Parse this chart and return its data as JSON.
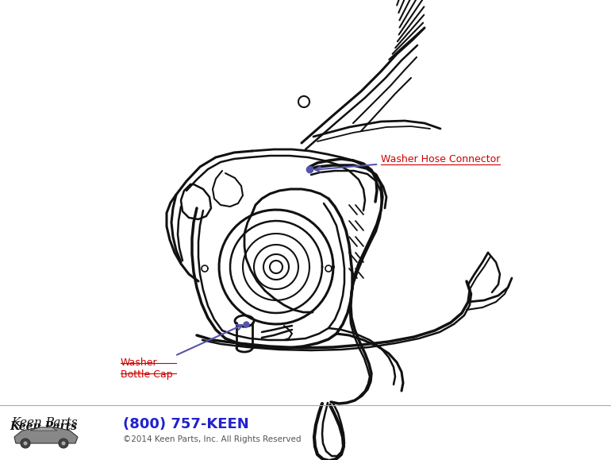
{
  "background_color": "#ffffff",
  "label1": "Washer Hose Connector",
  "label2": "Washer\nBottle Cap",
  "label1_color": "#cc0000",
  "label2_color": "#cc0000",
  "arrow_color": "#5555aa",
  "phone": "(800) 757-KEEN",
  "phone_color": "#2222cc",
  "copyright": "©2014 Keen Parts, Inc. All Rights Reserved",
  "copyright_color": "#555555",
  "line_color": "#111111",
  "fig_width": 7.7,
  "fig_height": 5.79,
  "dpi": 100
}
